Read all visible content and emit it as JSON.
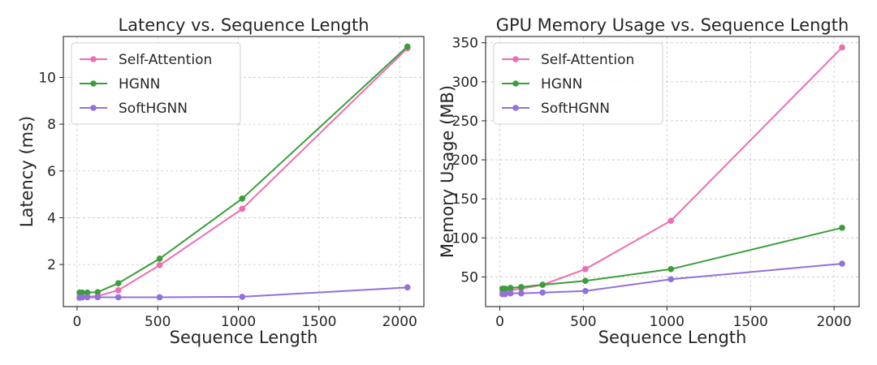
{
  "chart_data": [
    {
      "type": "line",
      "title": "Latency vs. Sequence Length",
      "xlabel": "Sequence Length",
      "ylabel": "Latency (ms)",
      "xlim": [
        -85,
        2150
      ],
      "ylim": [
        0.2,
        11.75
      ],
      "xticks": [
        0,
        500,
        1000,
        1500,
        2000
      ],
      "yticks": [
        2,
        4,
        6,
        8,
        10
      ],
      "grid": true,
      "legend_position": "top-left",
      "x": [
        16,
        32,
        64,
        128,
        256,
        512,
        1024,
        2048
      ],
      "series": [
        {
          "name": "Self-Attention",
          "color": "#ec6fb0",
          "values": [
            0.6,
            0.6,
            0.62,
            0.65,
            0.9,
            1.97,
            4.38,
            11.25
          ]
        },
        {
          "name": "HGNN",
          "color": "#3a9e3a",
          "values": [
            0.8,
            0.8,
            0.8,
            0.82,
            1.2,
            2.25,
            4.82,
            11.32
          ]
        },
        {
          "name": "SoftHGNN",
          "color": "#9370db",
          "values": [
            0.58,
            0.6,
            0.6,
            0.6,
            0.6,
            0.6,
            0.62,
            1.02
          ]
        }
      ]
    },
    {
      "type": "line",
      "title": "GPU Memory Usage vs. Sequence Length",
      "xlabel": "Sequence Length",
      "ylabel": "Memory Usage (MB)",
      "xlim": [
        -85,
        2150
      ],
      "ylim": [
        12,
        358
      ],
      "xticks": [
        0,
        500,
        1000,
        1500,
        2000
      ],
      "yticks": [
        50,
        100,
        150,
        200,
        250,
        300,
        350
      ],
      "grid": true,
      "legend_position": "top-left",
      "x": [
        16,
        32,
        64,
        128,
        256,
        512,
        1024,
        2048
      ],
      "series": [
        {
          "name": "Self-Attention",
          "color": "#ec6fb0",
          "values": [
            31,
            32,
            33,
            35,
            40,
            60,
            122,
            344
          ]
        },
        {
          "name": "HGNN",
          "color": "#3a9e3a",
          "values": [
            35,
            35,
            36,
            37,
            40,
            45,
            60,
            113
          ]
        },
        {
          "name": "SoftHGNN",
          "color": "#9370db",
          "values": [
            28,
            28,
            29,
            29,
            30,
            32,
            47,
            67
          ]
        }
      ]
    }
  ]
}
